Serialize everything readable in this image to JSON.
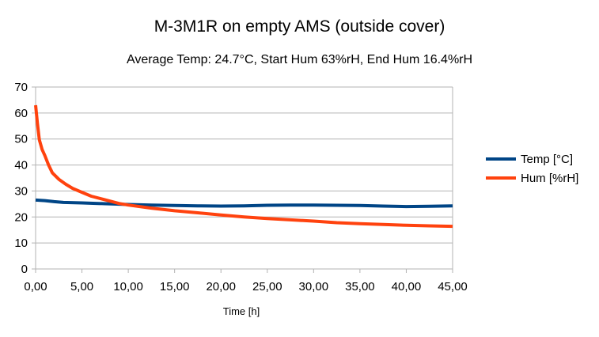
{
  "chart_data": {
    "type": "line",
    "title": "M-3M1R on empty AMS (outside cover)",
    "subtitle": "Average Temp: 24.7°C, Start Hum 63%rH, End Hum 16.4%rH",
    "xlabel": "Time [h]",
    "ylabel": "",
    "xlim": [
      0,
      45
    ],
    "ylim": [
      0,
      70
    ],
    "x_ticks": [
      "0,00",
      "5,00",
      "10,00",
      "15,00",
      "20,00",
      "25,00",
      "30,00",
      "35,00",
      "40,00",
      "45,00"
    ],
    "y_ticks": [
      "0",
      "10",
      "20",
      "30",
      "40",
      "50",
      "60",
      "70"
    ],
    "grid": "horizontal",
    "legend": "right",
    "series": [
      {
        "name": "Temp [°C]",
        "color": "#004586",
        "x": [
          0,
          1,
          2,
          3,
          5,
          7.5,
          10,
          12.5,
          15,
          17.5,
          20,
          22.5,
          25,
          27.5,
          30,
          32.5,
          35,
          37.5,
          40,
          42.5,
          45
        ],
        "y": [
          26.5,
          26.3,
          25.9,
          25.6,
          25.4,
          25.1,
          24.8,
          24.6,
          24.4,
          24.3,
          24.2,
          24.3,
          24.5,
          24.6,
          24.6,
          24.5,
          24.4,
          24.2,
          24.0,
          24.1,
          24.3
        ]
      },
      {
        "name": "Hum [%rH]",
        "color": "#ff420e",
        "x": [
          0,
          0.2,
          0.4,
          0.7,
          1,
          1.4,
          1.8,
          2.5,
          3.25,
          4,
          5,
          6,
          7.5,
          9,
          10,
          12.5,
          15,
          17.5,
          20,
          22.5,
          25,
          27.5,
          30,
          32.5,
          35,
          37.5,
          40,
          42.5,
          45
        ],
        "y": [
          63,
          56,
          49.7,
          46,
          43.6,
          40,
          37,
          34.5,
          32.6,
          31,
          29.5,
          28,
          26.6,
          25.2,
          24.6,
          23.4,
          22.4,
          21.6,
          20.8,
          20,
          19.4,
          18.9,
          18.4,
          17.8,
          17.4,
          17.1,
          16.8,
          16.6,
          16.4
        ]
      }
    ]
  }
}
